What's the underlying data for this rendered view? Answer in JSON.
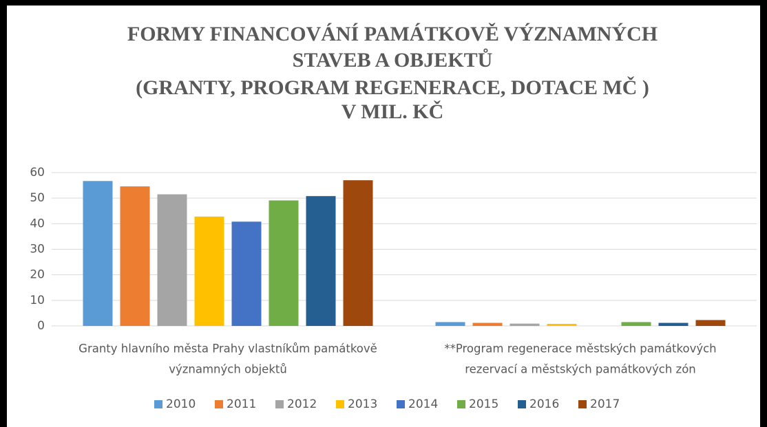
{
  "chart_data": {
    "type": "bar",
    "title": [
      "FORMY FINANCOVÁNÍ PAMÁTKOVĚ VÝZNAMNÝCH",
      "STAVEB A OBJEKTŮ",
      "(GRANTY, PROGRAM REGENERACE, DOTACE MČ )",
      "V MIL. KČ"
    ],
    "categories": [
      [
        "Granty hlavního města Prahy vlastníkům památkově",
        "významných objektů"
      ],
      [
        "**Program regenerace městských památkových",
        "rezervací a městských památkových zón"
      ]
    ],
    "series": [
      {
        "name": "2010",
        "color": "#5b9bd5",
        "values": [
          56.7,
          1.5
        ]
      },
      {
        "name": "2011",
        "color": "#ed7d31",
        "values": [
          54.6,
          1.2
        ]
      },
      {
        "name": "2012",
        "color": "#a5a5a5",
        "values": [
          51.5,
          0.9
        ]
      },
      {
        "name": "2013",
        "color": "#ffc000",
        "values": [
          42.8,
          0.8
        ]
      },
      {
        "name": "2014",
        "color": "#4472c4",
        "values": [
          40.8,
          null
        ]
      },
      {
        "name": "2015",
        "color": "#70ad47",
        "values": [
          49.1,
          1.5
        ]
      },
      {
        "name": "2016",
        "color": "#255e91",
        "values": [
          50.8,
          1.2
        ]
      },
      {
        "name": "2017",
        "color": "#9e480e",
        "values": [
          57.0,
          2.3
        ]
      }
    ],
    "ylim": [
      0,
      60
    ],
    "yticks": [
      0,
      10,
      20,
      30,
      40,
      50,
      60
    ],
    "grid": true,
    "legend": "bottom"
  }
}
